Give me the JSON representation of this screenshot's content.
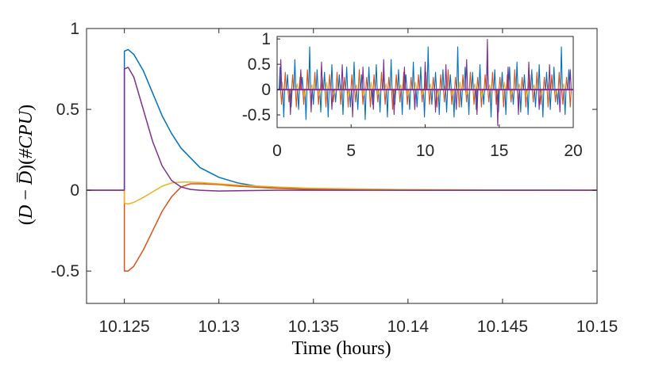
{
  "chart_data": [
    {
      "type": "line",
      "xlabel": "Time (hours)",
      "ylabel_parts": [
        "(",
        "D",
        " − ",
        "D̅",
        ")(",
        "#CPU",
        ")"
      ],
      "xlim": [
        10.123,
        10.15
      ],
      "ylim": [
        -0.7,
        1.0
      ],
      "x_ticks": [
        10.125,
        10.13,
        10.135,
        10.14,
        10.145,
        10.15
      ],
      "x_tick_labels": [
        "10.125",
        "10.13",
        "10.135",
        "10.14",
        "10.145",
        "10.15"
      ],
      "y_ticks": [
        -0.5,
        0,
        0.5,
        1
      ],
      "y_tick_labels": [
        "-0.5",
        "0",
        "0.5",
        "1"
      ],
      "series": [
        {
          "name": "series 1",
          "color": "#0072BD",
          "x": [
            10.123,
            10.125,
            10.125,
            10.1252,
            10.1255,
            10.126,
            10.1265,
            10.127,
            10.1275,
            10.128,
            10.129,
            10.13,
            10.131,
            10.132,
            10.133,
            10.134,
            10.135,
            10.137,
            10.14,
            10.145,
            10.15
          ],
          "values": [
            0,
            0,
            0.86,
            0.87,
            0.84,
            0.74,
            0.6,
            0.46,
            0.35,
            0.26,
            0.14,
            0.08,
            0.045,
            0.025,
            0.015,
            0.01,
            0.007,
            0.004,
            0.002,
            0.0,
            0.0
          ]
        },
        {
          "name": "series 2",
          "color": "#D95319",
          "x": [
            10.123,
            10.125,
            10.125,
            10.1252,
            10.1255,
            10.126,
            10.1265,
            10.127,
            10.1275,
            10.128,
            10.1285,
            10.129,
            10.13,
            10.131,
            10.133,
            10.135,
            10.14,
            10.15
          ],
          "values": [
            0,
            0,
            -0.5,
            -0.5,
            -0.47,
            -0.37,
            -0.25,
            -0.13,
            -0.04,
            0.02,
            0.04,
            0.04,
            0.035,
            0.025,
            0.012,
            0.005,
            0.0,
            0.0
          ]
        },
        {
          "name": "series 3",
          "color": "#EDB120",
          "x": [
            10.123,
            10.125,
            10.125,
            10.1252,
            10.1255,
            10.126,
            10.1265,
            10.127,
            10.1275,
            10.128,
            10.1285,
            10.129,
            10.13,
            10.131,
            10.133,
            10.135,
            10.14,
            10.145,
            10.15
          ],
          "values": [
            0,
            0,
            -0.08,
            -0.085,
            -0.075,
            -0.045,
            -0.01,
            0.025,
            0.045,
            0.05,
            0.05,
            0.048,
            0.04,
            0.032,
            0.02,
            0.012,
            0.004,
            0.001,
            0.0
          ]
        },
        {
          "name": "series 4",
          "color": "#7E2F8E",
          "x": [
            10.123,
            10.125,
            10.125,
            10.1252,
            10.1255,
            10.126,
            10.1265,
            10.127,
            10.1275,
            10.128,
            10.1285,
            10.129,
            10.13,
            10.131,
            10.133,
            10.135,
            10.14,
            10.15
          ],
          "values": [
            0,
            0,
            0.75,
            0.76,
            0.7,
            0.5,
            0.3,
            0.15,
            0.06,
            0.02,
            0.005,
            0.0,
            -0.005,
            -0.003,
            0.0,
            0.0,
            0.0,
            0.0
          ]
        }
      ]
    },
    {
      "type": "line",
      "inset": true,
      "xlim": [
        0,
        20
      ],
      "ylim": [
        -0.75,
        1.05
      ],
      "x_ticks": [
        0,
        5,
        10,
        15,
        20
      ],
      "x_tick_labels": [
        "0",
        "5",
        "10",
        "15",
        "20"
      ],
      "y_ticks": [
        -0.5,
        0,
        0.5,
        1
      ],
      "y_tick_labels": [
        "-0.5",
        "0",
        "0.5",
        "1"
      ],
      "note": "Dense oscillating spike series around 0, approximately 85 spikes per series across 0-20",
      "series": [
        {
          "name": "inset series 1",
          "color": "#0072BD",
          "spike_x": [
            0.2,
            0.45,
            0.7,
            0.95,
            1.2,
            1.45,
            1.7,
            1.95,
            2.2,
            2.45,
            2.7,
            2.95,
            3.2,
            3.45,
            3.7,
            3.95,
            4.2,
            4.45,
            4.7,
            4.95,
            5.2,
            5.45,
            5.7,
            5.95,
            6.2,
            6.45,
            6.7,
            6.95,
            7.2,
            7.45,
            7.7,
            7.95,
            8.2,
            8.45,
            8.7,
            8.95,
            9.2,
            9.45,
            9.7,
            9.95,
            10.2,
            10.45,
            10.7,
            10.95,
            11.2,
            11.45,
            11.7,
            11.95,
            12.2,
            12.45,
            12.7,
            12.95,
            13.2,
            13.45,
            13.7,
            13.95,
            14.2,
            14.45,
            14.7,
            14.95,
            15.2,
            15.45,
            15.7,
            15.95,
            16.2,
            16.45,
            16.7,
            16.95,
            17.2,
            17.45,
            17.7,
            17.95,
            18.2,
            18.45,
            18.7,
            18.95,
            19.2,
            19.45,
            19.7
          ],
          "values": [
            0.45,
            -0.55,
            0.3,
            -0.35,
            0.6,
            -0.4,
            0.25,
            -0.6,
            0.85,
            -0.3,
            0.4,
            -0.45,
            0.35,
            -0.55,
            0.5,
            -0.25,
            0.3,
            -0.5,
            0.45,
            -0.35,
            0.55,
            -0.4,
            0.3,
            -0.6,
            0.45,
            -0.3,
            0.5,
            -0.45,
            0.35,
            -0.55,
            0.6,
            -0.3,
            0.4,
            -0.5,
            0.3,
            -0.4,
            0.55,
            -0.35,
            0.45,
            -0.55,
            0.85,
            -0.3,
            0.35,
            -0.5,
            0.4,
            -0.45,
            0.3,
            -0.55,
            0.85,
            -0.35,
            0.45,
            -0.5,
            0.35,
            -0.4,
            0.5,
            -0.3,
            0.6,
            -0.55,
            0.4,
            -0.45,
            0.35,
            -0.5,
            0.45,
            -0.3,
            0.55,
            -0.45,
            0.3,
            -0.5,
            0.4,
            -0.35,
            0.5,
            -0.55,
            0.35,
            -0.4,
            0.45,
            -0.3,
            0.85,
            -0.5,
            0.4
          ]
        },
        {
          "name": "inset series 2",
          "color": "#D95319",
          "spike_x": [
            0.3,
            0.55,
            0.8,
            1.05,
            1.3,
            1.55,
            1.8,
            2.05,
            2.3,
            2.55,
            2.8,
            3.05,
            3.3,
            3.55,
            3.8,
            4.05,
            4.3,
            4.55,
            4.8,
            5.05,
            5.3,
            5.55,
            5.8,
            6.05,
            6.3,
            6.55,
            6.8,
            7.05,
            7.3,
            7.55,
            7.8,
            8.05,
            8.3,
            8.55,
            8.8,
            9.05,
            9.3,
            9.55,
            9.8,
            10.05,
            10.3,
            10.55,
            10.8,
            11.05,
            11.3,
            11.55,
            11.8,
            12.05,
            12.3,
            12.55,
            12.8,
            13.05,
            13.3,
            13.55,
            13.8,
            14.05,
            14.3,
            14.55,
            14.8,
            15.05,
            15.3,
            15.55,
            15.8,
            16.05,
            16.3,
            16.55,
            16.8,
            17.05,
            17.3,
            17.55,
            17.8,
            18.05,
            18.3,
            18.55,
            18.8,
            19.05,
            19.3,
            19.55,
            19.8
          ],
          "values": [
            -0.3,
            0.35,
            -0.25,
            0.3,
            -0.35,
            0.25,
            -0.3,
            0.4,
            -0.25,
            0.35,
            -0.3,
            0.25,
            -0.35,
            0.3,
            -0.25,
            0.35,
            -0.3,
            0.25,
            -0.35,
            0.3,
            -0.25,
            0.4,
            -0.3,
            0.25,
            -0.35,
            0.3,
            -0.25,
            0.35,
            -0.3,
            0.25,
            -0.4,
            0.3,
            -0.25,
            0.35,
            -0.3,
            0.25,
            -0.35,
            0.3,
            -0.25,
            0.35,
            -0.3,
            0.25,
            -0.35,
            0.3,
            -0.25,
            0.4,
            -0.3,
            0.25,
            -0.35,
            0.3,
            -0.25,
            0.35,
            -0.3,
            0.25,
            -0.35,
            0.3,
            -0.25,
            0.35,
            -0.3,
            0.25,
            -0.35,
            0.3,
            -0.25,
            0.4,
            -0.3,
            0.25,
            -0.35,
            0.3,
            -0.25,
            0.35,
            -0.3,
            0.25,
            -0.35,
            0.3,
            -0.25,
            0.35,
            -0.3,
            0.25,
            -0.35
          ]
        },
        {
          "name": "inset series 3",
          "color": "#EDB120",
          "spike_x": [
            0.35,
            0.85,
            1.35,
            1.85,
            2.35,
            2.85,
            3.35,
            3.85,
            4.35,
            4.85,
            5.35,
            5.85,
            6.35,
            6.85,
            7.35,
            7.85,
            8.35,
            8.85,
            9.35,
            9.85,
            10.35,
            10.85,
            11.35,
            11.85,
            12.35,
            12.85,
            13.35,
            13.85,
            14.35,
            14.85,
            15.35,
            15.85,
            16.35,
            16.85,
            17.35,
            17.85,
            18.35,
            18.85,
            19.35
          ],
          "values": [
            0.15,
            -0.1,
            0.12,
            -0.15,
            0.1,
            -0.12,
            0.15,
            -0.1,
            0.12,
            -0.15,
            0.1,
            -0.12,
            0.15,
            -0.1,
            0.12,
            -0.15,
            0.1,
            -0.12,
            0.15,
            -0.1,
            0.12,
            -0.15,
            0.1,
            -0.12,
            0.15,
            -0.1,
            0.12,
            -0.15,
            0.1,
            -0.12,
            0.15,
            -0.1,
            0.12,
            -0.15,
            0.1,
            -0.12,
            0.15,
            -0.1,
            0.12
          ]
        },
        {
          "name": "inset series 4",
          "color": "#7E2F8E",
          "spike_x": [
            0.25,
            0.9,
            1.6,
            2.3,
            3.0,
            3.7,
            4.4,
            5.1,
            5.8,
            6.5,
            7.2,
            7.9,
            8.6,
            9.3,
            10.0,
            10.7,
            11.4,
            12.1,
            12.8,
            13.5,
            14.2,
            14.9,
            15.6,
            16.3,
            17.0,
            17.7,
            18.4,
            19.1,
            19.8
          ],
          "values": [
            0.6,
            -0.5,
            0.4,
            -0.45,
            0.55,
            -0.4,
            0.5,
            -0.55,
            0.45,
            -0.4,
            0.6,
            -0.5,
            0.45,
            -0.4,
            0.55,
            -0.45,
            0.5,
            -0.4,
            0.6,
            -0.5,
            1.0,
            -0.72,
            0.45,
            -0.5,
            0.55,
            -0.4,
            0.5,
            -0.45,
            0.4
          ]
        }
      ]
    }
  ]
}
